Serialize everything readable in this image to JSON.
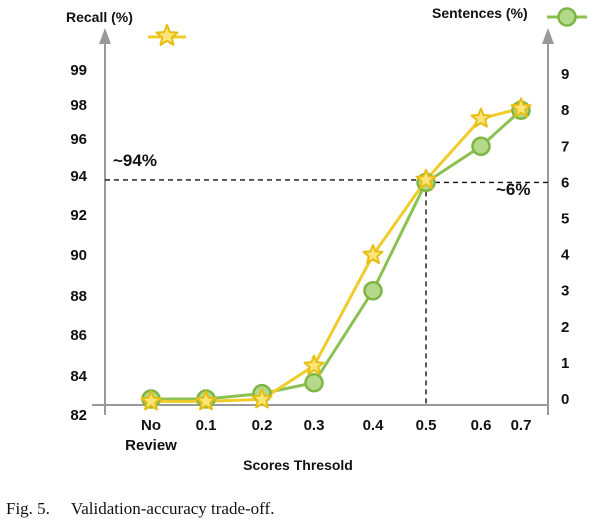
{
  "chart_data": {
    "type": "line",
    "xlabel": "Scores Thresold",
    "categories": [
      "No\nReview",
      "0.1",
      "0.2",
      "0.3",
      "0.4",
      "0.5",
      "0.6",
      "0.7"
    ],
    "left_axis": {
      "label": "Recall (%)",
      "ylim": [
        82,
        100
      ],
      "ticks": [
        "82",
        "84",
        "86",
        "88",
        "90",
        "92",
        "94",
        "96",
        "98",
        "99"
      ]
    },
    "right_axis": {
      "label": "Sentences (%)",
      "ylim": [
        -0.3,
        9.7
      ],
      "ticks": [
        "0",
        "1",
        "2",
        "3",
        "4",
        "5",
        "6",
        "7",
        "8",
        "9"
      ]
    },
    "series": [
      {
        "name": "Recall (%)",
        "axis": "left",
        "values": [
          82.7,
          82.7,
          82.8,
          84.5,
          90.0,
          93.8,
          97.2,
          97.8
        ]
      },
      {
        "name": "Sentences (%)",
        "axis": "right",
        "values": [
          0.0,
          0.0,
          0.15,
          0.45,
          3.0,
          6.0,
          7.0,
          8.0
        ]
      }
    ],
    "annotations": [
      {
        "text": "~94%",
        "axis": "left",
        "value": 93.8
      },
      {
        "text": "~6%",
        "axis": "right",
        "value": 6.0,
        "x_category": "0.5"
      }
    ],
    "colors": {
      "recall": "#f0cc2a",
      "sentences": "#8cc152",
      "axis": "#999999"
    },
    "grid": false,
    "legend": "top"
  },
  "caption": "Fig. 5.     Validation-accuracy trade-off."
}
